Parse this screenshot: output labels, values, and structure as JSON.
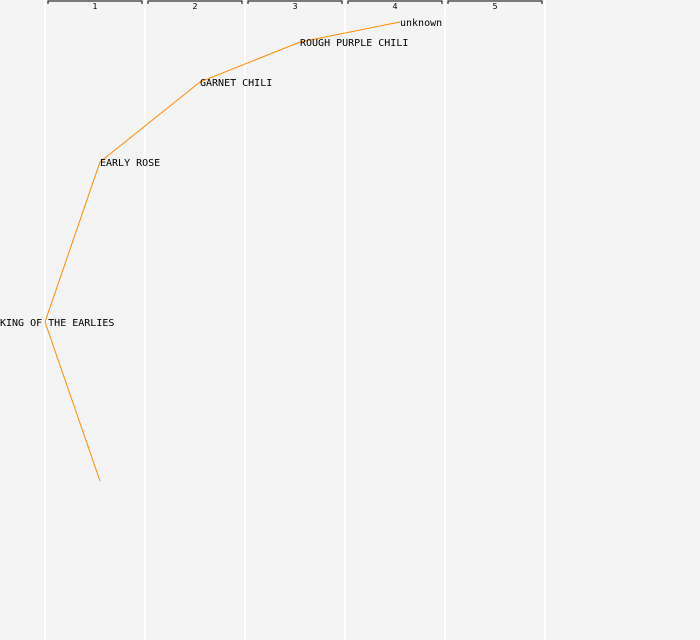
{
  "colors": {
    "background": "#f4f4f4",
    "divider": "#ffffff",
    "edge": "#ff8c00",
    "text": "#000000"
  },
  "generations": [
    "1",
    "2",
    "3",
    "4",
    "5"
  ],
  "nodes": [
    {
      "id": "root",
      "label": "KING OF THE EARLIES",
      "generation": 0
    },
    {
      "id": "n1",
      "label": "EARLY ROSE",
      "generation": 1
    },
    {
      "id": "n2",
      "label": "GARNET CHILI",
      "generation": 2
    },
    {
      "id": "n3",
      "label": "ROUGH PURPLE CHILI",
      "generation": 3
    },
    {
      "id": "n4",
      "label": "unknown",
      "generation": 4
    },
    {
      "id": "n5",
      "label": "",
      "generation": 1
    }
  ],
  "edges": [
    {
      "from": "root",
      "to": "n1"
    },
    {
      "from": "n1",
      "to": "n2"
    },
    {
      "from": "n2",
      "to": "n3"
    },
    {
      "from": "n3",
      "to": "n4"
    },
    {
      "from": "root",
      "to": "n5"
    }
  ]
}
